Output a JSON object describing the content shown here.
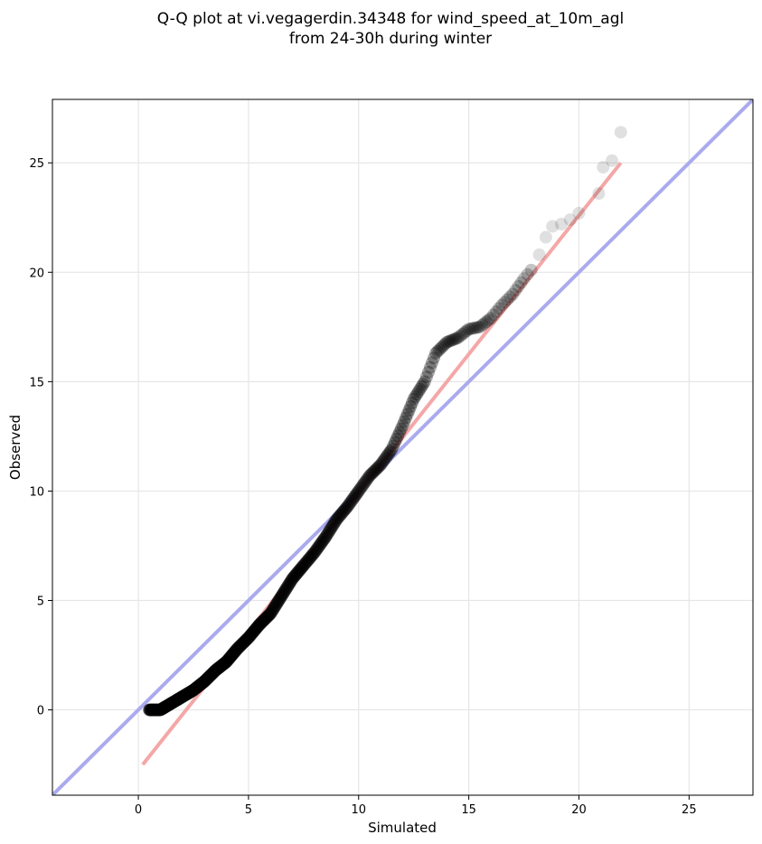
{
  "chart_data": {
    "type": "scatter",
    "title_lines": [
      "Q-Q plot at vi.vegagerdin.34348 for wind_speed_at_10m_agl",
      "from 24-30h during winter"
    ],
    "xlabel": "Simulated",
    "ylabel": "Observed",
    "xlim": [
      -3.9,
      27.9
    ],
    "ylim": [
      -3.9,
      27.9
    ],
    "xticks": [
      0,
      5,
      10,
      15,
      20,
      25
    ],
    "yticks": [
      0,
      5,
      10,
      15,
      20,
      25
    ],
    "grid": true,
    "colors": {
      "points": "#000000",
      "identity_line": "#aaaaee",
      "fit_line": "#f4a7a7",
      "frame": "#000000"
    },
    "identity_line": [
      [
        -3.9,
        -3.9
      ],
      [
        27.9,
        27.9
      ]
    ],
    "fit_line": [
      [
        0.2,
        -2.5
      ],
      [
        21.9,
        25.0
      ]
    ],
    "quantile_curve": [
      [
        0.5,
        0.0
      ],
      [
        1.0,
        0.0
      ],
      [
        1.5,
        0.3
      ],
      [
        2.0,
        0.6
      ],
      [
        2.5,
        0.9
      ],
      [
        3.0,
        1.3
      ],
      [
        3.5,
        1.8
      ],
      [
        4.0,
        2.2
      ],
      [
        4.5,
        2.8
      ],
      [
        5.0,
        3.3
      ],
      [
        5.5,
        3.9
      ],
      [
        6.0,
        4.4
      ],
      [
        6.5,
        5.2
      ],
      [
        7.0,
        6.0
      ],
      [
        7.5,
        6.6
      ],
      [
        8.0,
        7.2
      ],
      [
        8.5,
        7.9
      ],
      [
        9.0,
        8.7
      ],
      [
        9.5,
        9.3
      ],
      [
        10.0,
        10.0
      ],
      [
        10.5,
        10.7
      ],
      [
        11.0,
        11.2
      ],
      [
        11.5,
        11.9
      ],
      [
        12.0,
        13.0
      ],
      [
        12.5,
        14.2
      ],
      [
        13.0,
        15.0
      ],
      [
        13.5,
        16.3
      ],
      [
        14.0,
        16.8
      ],
      [
        14.5,
        17.0
      ],
      [
        15.0,
        17.4
      ],
      [
        15.5,
        17.5
      ],
      [
        16.0,
        17.9
      ],
      [
        16.5,
        18.5
      ],
      [
        17.0,
        19.0
      ],
      [
        17.5,
        19.7
      ],
      [
        18.0,
        20.3
      ]
    ],
    "tail_points": [
      [
        18.2,
        20.8
      ],
      [
        18.5,
        21.6
      ],
      [
        18.8,
        22.1
      ],
      [
        19.2,
        22.2
      ],
      [
        19.6,
        22.4
      ],
      [
        20.0,
        22.7
      ],
      [
        20.9,
        23.6
      ],
      [
        21.1,
        24.8
      ],
      [
        21.5,
        25.1
      ],
      [
        21.9,
        26.4
      ]
    ]
  }
}
